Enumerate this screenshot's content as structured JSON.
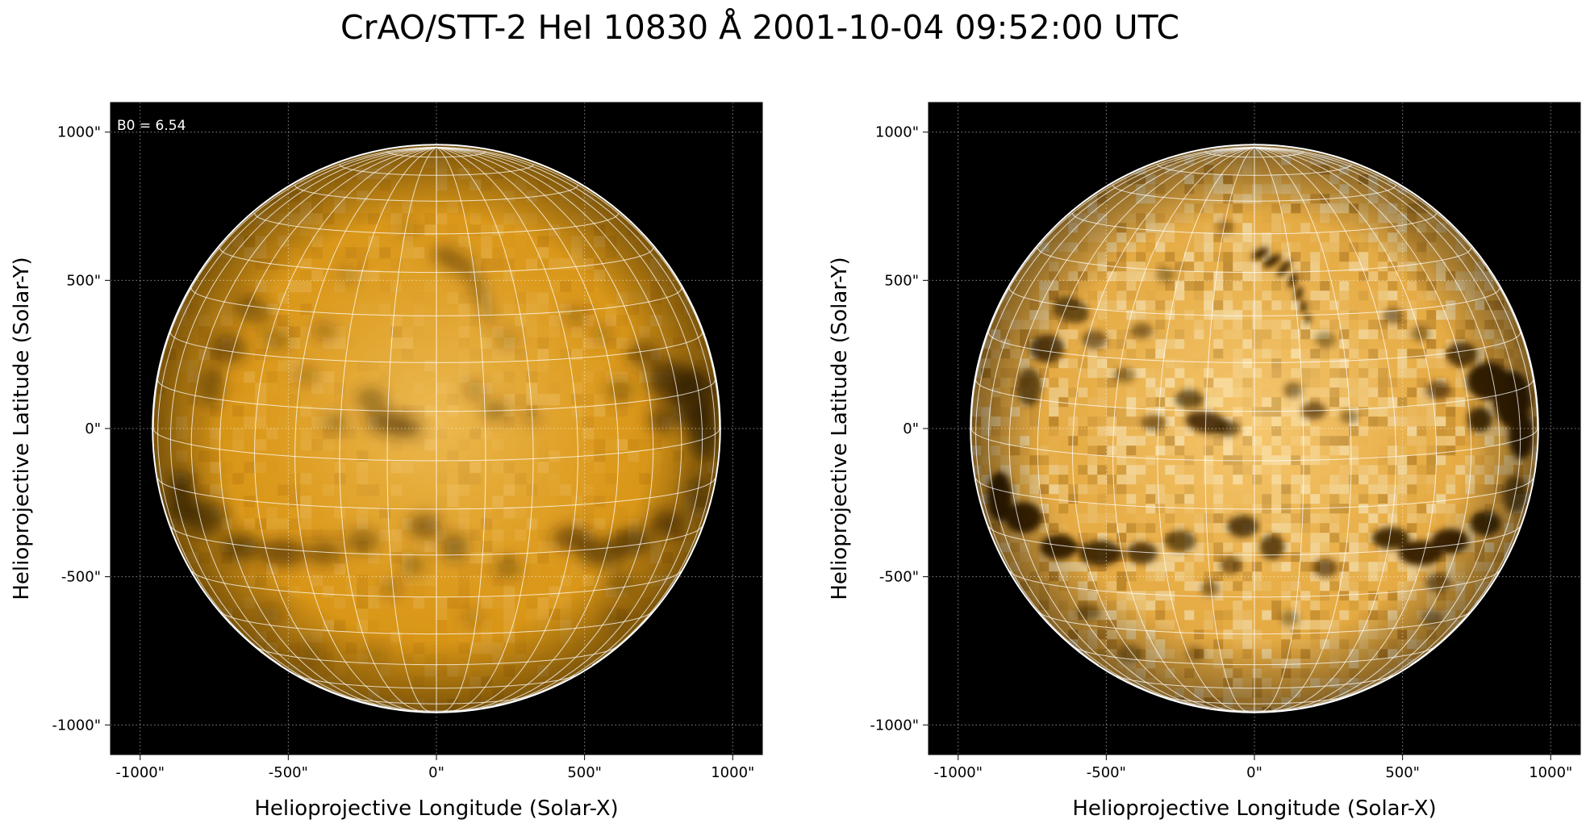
{
  "figure": {
    "title": "CrAO/STT-2 HeI 10830 Å 2001-10-04 09:52:00 UTC",
    "colors": {
      "sky": "#000000",
      "disk_base": "#e39a10",
      "disk_bright": "#f7d89a",
      "disk_dark": "#3a2200",
      "grid": "#ffffff",
      "limb": "#ffffff"
    }
  },
  "panels": [
    {
      "name": "left",
      "annotation": "B0 = 6.54",
      "xlabel": "Helioprojective Longitude (Solar-X)",
      "ylabel": "Helioprojective Latitude (Solar-Y)",
      "xticks": [
        "-1000\"",
        "-500\"",
        "0\"",
        "500\"",
        "1000\""
      ],
      "yticks": [
        "1000\"",
        "500\"",
        "0\"",
        "-500\"",
        "-1000\""
      ],
      "tick_values": [
        -1000,
        -500,
        0,
        500,
        1000
      ],
      "range": [
        -1100,
        1100
      ],
      "solar_radius_arcsec": 955,
      "b0_deg": 6.54,
      "contrast": "normal"
    },
    {
      "name": "right",
      "annotation": "",
      "xlabel": "Helioprojective Longitude (Solar-X)",
      "ylabel": "Helioprojective Latitude (Solar-Y)",
      "xticks": [
        "-1000\"",
        "-500\"",
        "0\"",
        "500\"",
        "1000\""
      ],
      "yticks": [
        "1000\"",
        "500\"",
        "0\"",
        "-500\"",
        "-1000\""
      ],
      "tick_values": [
        -1000,
        -500,
        0,
        500,
        1000
      ],
      "range": [
        -1100,
        1100
      ],
      "solar_radius_arcsec": 955,
      "b0_deg": 6.54,
      "contrast": "enhanced"
    }
  ]
}
